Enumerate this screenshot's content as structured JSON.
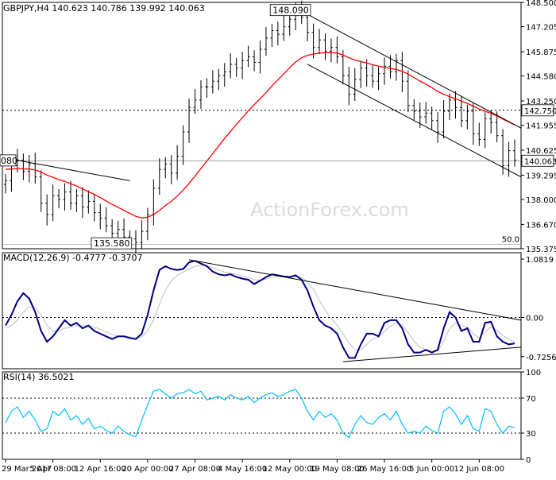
{
  "chart_data": {
    "type": "line",
    "panels": {
      "price": {
        "title": "GBPJPY,H4  140.623 140.786 139.992 140.063",
        "ylim": [
          135.375,
          148.5
        ],
        "yticks": [
          "148.500",
          "147.205",
          "145.875",
          "144.580",
          "143.250",
          "141.955",
          "140.625",
          "139.295",
          "138.000",
          "136.670",
          "135.375"
        ],
        "ytick_values": [
          148.5,
          147.205,
          145.875,
          144.58,
          143.25,
          141.955,
          140.625,
          139.295,
          138.0,
          136.67,
          135.375
        ],
        "current_price": {
          "label": "140.063",
          "value": 140.063
        },
        "resistance_level": {
          "label": "142.750",
          "value": 142.75
        },
        "high_annotation": {
          "label": "148.090",
          "x": 49,
          "value": 148.09
        },
        "low_annotation": {
          "label": "135.580",
          "x": 22,
          "value": 135.58
        },
        "left_annotation": {
          "label": "080",
          "value": 140.08
        },
        "fib_label": "50.0",
        "fib_value": 135.6,
        "ma_color": "#ff0000",
        "candle_color": "#000000",
        "sma_name": "",
        "x": [
          0,
          1,
          2,
          3,
          4,
          5,
          6,
          7,
          8,
          9,
          10,
          11,
          12,
          13,
          14,
          15,
          16,
          17,
          18,
          19,
          20,
          21,
          22,
          23,
          24,
          25,
          26,
          27,
          28,
          29,
          30,
          31,
          32,
          33,
          34,
          35,
          36,
          37,
          38,
          39,
          40,
          41,
          42,
          43,
          44,
          45,
          46,
          47,
          48,
          49,
          50,
          51,
          52,
          53,
          54,
          55,
          56,
          57,
          58,
          59,
          60,
          61,
          62,
          63,
          64,
          65,
          66,
          67,
          68,
          69,
          70,
          71,
          72,
          73,
          74,
          75,
          76,
          77,
          78,
          79,
          80,
          81,
          82,
          83,
          84,
          85,
          86
        ],
        "close": [
          139.0,
          139.8,
          140.1,
          139.5,
          139.9,
          139.2,
          137.8,
          137.2,
          138.2,
          138.0,
          138.4,
          137.8,
          138.2,
          137.6,
          137.9,
          137.3,
          137.0,
          136.6,
          136.2,
          136.4,
          136.0,
          135.9,
          135.7,
          136.3,
          137.2,
          138.6,
          139.6,
          139.9,
          139.4,
          140.3,
          141.6,
          142.9,
          143.3,
          144.0,
          144.0,
          144.3,
          144.6,
          144.8,
          145.2,
          145.0,
          145.4,
          145.6,
          145.3,
          146.0,
          146.6,
          147.0,
          146.8,
          147.2,
          147.6,
          148.0,
          147.7,
          146.9,
          146.1,
          146.5,
          145.9,
          146.1,
          145.6,
          144.6,
          143.6,
          144.4,
          145.0,
          144.6,
          144.3,
          144.7,
          145.1,
          144.8,
          145.4,
          144.3,
          143.0,
          142.7,
          142.4,
          142.6,
          142.2,
          141.6,
          142.7,
          143.3,
          142.9,
          142.2,
          142.7,
          141.5,
          141.2,
          142.3,
          142.1,
          141.4,
          139.8,
          140.6,
          140.1
        ],
        "ma": [
          139.6,
          139.62,
          139.65,
          139.63,
          139.62,
          139.57,
          139.46,
          139.3,
          139.18,
          139.06,
          138.96,
          138.84,
          138.72,
          138.56,
          138.42,
          138.27,
          138.1,
          137.92,
          137.74,
          137.58,
          137.42,
          137.26,
          137.1,
          137.02,
          137.05,
          137.2,
          137.42,
          137.68,
          137.9,
          138.18,
          138.5,
          138.86,
          139.25,
          139.65,
          140.05,
          140.45,
          140.85,
          141.25,
          141.63,
          142.0,
          142.36,
          142.72,
          143.05,
          143.37,
          143.7,
          144.05,
          144.38,
          144.7,
          145.02,
          145.33,
          145.55,
          145.68,
          145.75,
          145.8,
          145.82,
          145.83,
          145.8,
          145.7,
          145.55,
          145.43,
          145.35,
          145.27,
          145.18,
          145.1,
          145.04,
          144.98,
          144.93,
          144.83,
          144.68,
          144.5,
          144.31,
          144.14,
          143.96,
          143.76,
          143.6,
          143.48,
          143.37,
          143.24,
          143.12,
          142.97,
          142.82,
          142.7,
          142.59,
          142.46,
          142.28,
          142.13,
          141.98
        ]
      },
      "macd": {
        "title": "MACD(12,26,9) -0.4777 -0.3707",
        "ylim": [
          -0.95,
          1.2
        ],
        "yticks": [
          "1.0819",
          "0.00",
          "-0.7256"
        ],
        "ytick_values": [
          1.0819,
          0.0,
          -0.7256
        ],
        "zero_label": "0.00",
        "macd_color": "#000080",
        "signal_color": "#c0c0c0",
        "macd": [
          -0.15,
          0.05,
          0.3,
          0.45,
          0.35,
          0.1,
          -0.25,
          -0.45,
          -0.35,
          -0.2,
          -0.05,
          -0.15,
          -0.1,
          -0.2,
          -0.15,
          -0.25,
          -0.3,
          -0.35,
          -0.4,
          -0.35,
          -0.35,
          -0.38,
          -0.4,
          -0.3,
          0.05,
          0.5,
          0.88,
          0.95,
          0.9,
          0.88,
          0.9,
          1.02,
          1.05,
          1.0,
          0.95,
          0.85,
          0.8,
          0.78,
          0.8,
          0.75,
          0.72,
          0.7,
          0.62,
          0.68,
          0.75,
          0.8,
          0.78,
          0.76,
          0.75,
          0.78,
          0.7,
          0.5,
          0.2,
          -0.05,
          -0.15,
          -0.2,
          -0.3,
          -0.55,
          -0.75,
          -0.75,
          -0.5,
          -0.3,
          -0.3,
          -0.35,
          -0.1,
          -0.05,
          -0.05,
          -0.2,
          -0.5,
          -0.65,
          -0.65,
          -0.6,
          -0.65,
          -0.6,
          -0.2,
          0.1,
          0.0,
          -0.25,
          -0.2,
          -0.45,
          -0.45,
          -0.1,
          -0.08,
          -0.35,
          -0.45,
          -0.5,
          -0.48
        ],
        "signal": [
          -0.2,
          -0.15,
          -0.05,
          0.1,
          0.2,
          0.18,
          0.05,
          -0.15,
          -0.25,
          -0.25,
          -0.2,
          -0.18,
          -0.15,
          -0.15,
          -0.15,
          -0.18,
          -0.22,
          -0.27,
          -0.32,
          -0.34,
          -0.35,
          -0.36,
          -0.38,
          -0.36,
          -0.25,
          -0.05,
          0.25,
          0.5,
          0.68,
          0.78,
          0.84,
          0.9,
          0.95,
          0.97,
          0.96,
          0.92,
          0.88,
          0.84,
          0.82,
          0.8,
          0.77,
          0.74,
          0.7,
          0.69,
          0.71,
          0.74,
          0.76,
          0.76,
          0.76,
          0.76,
          0.74,
          0.66,
          0.52,
          0.32,
          0.13,
          -0.02,
          -0.14,
          -0.3,
          -0.47,
          -0.6,
          -0.6,
          -0.5,
          -0.4,
          -0.36,
          -0.26,
          -0.16,
          -0.1,
          -0.14,
          -0.28,
          -0.44,
          -0.55,
          -0.6,
          -0.62,
          -0.62,
          -0.45,
          -0.2,
          -0.1,
          -0.15,
          -0.18,
          -0.3,
          -0.38,
          -0.27,
          -0.17,
          -0.24,
          -0.33,
          -0.41,
          -0.45
        ]
      },
      "rsi": {
        "title": "RSI(14) 36.5021",
        "ylim": [
          0,
          100
        ],
        "yticks": [
          "100",
          "70",
          "30",
          "0"
        ],
        "ytick_values": [
          100,
          70,
          30,
          0
        ],
        "line_color": "#00bfff",
        "values": [
          42,
          55,
          60,
          48,
          55,
          45,
          32,
          35,
          55,
          50,
          58,
          45,
          50,
          40,
          47,
          35,
          38,
          33,
          30,
          38,
          32,
          28,
          26,
          45,
          62,
          78,
          80,
          75,
          70,
          75,
          76,
          80,
          75,
          78,
          68,
          70,
          72,
          68,
          74,
          70,
          68,
          72,
          65,
          70,
          74,
          76,
          72,
          74,
          78,
          80,
          70,
          55,
          45,
          55,
          48,
          52,
          45,
          30,
          25,
          40,
          50,
          42,
          40,
          48,
          52,
          45,
          55,
          40,
          30,
          32,
          30,
          38,
          33,
          30,
          55,
          60,
          52,
          40,
          50,
          35,
          32,
          58,
          55,
          40,
          30,
          38,
          36
        ]
      },
      "xaxis": {
        "labels": [
          "29 Mar 2017",
          "5 Apr 08:00",
          "12 Apr 16:00",
          "20 Apr 00:00",
          "27 Apr 08:00",
          "4 May 16:00",
          "12 May 00:00",
          "19 May 08:00",
          "26 May 16:00",
          "5 Jun 00:00",
          "12 Jun 08:00"
        ],
        "label_x": [
          0,
          8,
          16,
          24,
          32,
          40,
          48,
          56,
          64,
          72,
          80
        ]
      }
    }
  },
  "watermark": "ActionForex.com"
}
